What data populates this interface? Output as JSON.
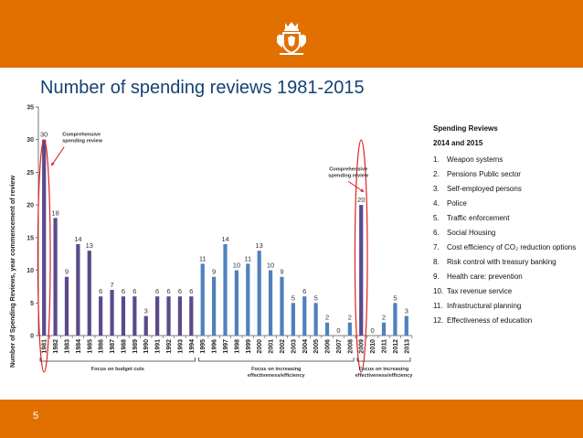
{
  "slide": {
    "title": "Number of spending reviews 1981-2015",
    "page_number": "5",
    "colors": {
      "brand_orange": "#e17000",
      "title_blue": "#154273",
      "bar_purple": "#5b4a8b",
      "bar_blue": "#4f81bd",
      "highlight_red": "#e02020"
    }
  },
  "legend": {
    "heading_1": "Spending Reviews",
    "heading_2": "2014 and 2015",
    "items": [
      {
        "num": "1.",
        "text": "Weapon systems"
      },
      {
        "num": "2.",
        "text": "Pensions Public sector"
      },
      {
        "num": "3.",
        "text": "Self-employed persons"
      },
      {
        "num": "4.",
        "text": "Police"
      },
      {
        "num": "5.",
        "text": "Traffic enforcement"
      },
      {
        "num": "6.",
        "text": "Social Housing"
      },
      {
        "num": "7.",
        "text": "Cost efficiency of CO₂ reduction options"
      },
      {
        "num": "8.",
        "text": "Risk control with treasury banking"
      },
      {
        "num": "9.",
        "text": "Health care: prevention"
      },
      {
        "num": "10.",
        "text": "Tax revenue service"
      },
      {
        "num": "11.",
        "text": "Infrastructural planning"
      },
      {
        "num": "12.",
        "text": "Effectiveness of education"
      }
    ]
  },
  "chart_data": {
    "type": "bar",
    "title": "",
    "ylabel": "Number of Spending Reviews, year commencement of review",
    "xlabel": "",
    "ylim": [
      0,
      35
    ],
    "yticks": [
      0,
      5,
      10,
      15,
      20,
      25,
      30,
      35
    ],
    "grid": false,
    "categories": [
      "1981",
      "1982",
      "1983",
      "1984",
      "1985",
      "1986",
      "1987",
      "1988",
      "1989",
      "1990",
      "1991",
      "1992",
      "1993",
      "1994",
      "1995",
      "1996",
      "1997",
      "1998",
      "1999",
      "2000",
      "2001",
      "2002",
      "2003",
      "2004",
      "2005",
      "2006",
      "2007",
      "2008",
      "2009",
      "2010",
      "2011",
      "2012",
      "2013"
    ],
    "values": [
      30,
      18,
      9,
      14,
      13,
      6,
      7,
      6,
      6,
      3,
      6,
      6,
      6,
      6,
      11,
      9,
      14,
      10,
      11,
      13,
      10,
      9,
      5,
      6,
      5,
      2,
      0,
      2,
      20,
      0,
      2,
      5,
      3
    ],
    "period_colors": [
      "purple",
      "purple",
      "purple",
      "purple",
      "purple",
      "purple",
      "purple",
      "purple",
      "purple",
      "purple",
      "purple",
      "purple",
      "purple",
      "purple",
      "blue",
      "blue",
      "blue",
      "blue",
      "blue",
      "blue",
      "blue",
      "blue",
      "blue",
      "blue",
      "blue",
      "blue",
      "blue",
      "blue",
      "purple",
      "blue",
      "blue",
      "blue",
      "blue"
    ],
    "annotations": [
      {
        "text_lines": [
          "Comprehensive",
          "spending review"
        ],
        "year": "1981"
      },
      {
        "text_lines": [
          "Comprehensive",
          "spending review"
        ],
        "year": "2009"
      }
    ],
    "periods": [
      {
        "text_lines": [
          "Focus on budget cuts"
        ],
        "from": "1981",
        "to": "1994"
      },
      {
        "text_lines": [
          "Focus on increasing",
          "effectiveness/efficiency"
        ],
        "from": "1995",
        "to": "2008"
      },
      {
        "text_lines": [
          "Focus on increasing",
          "effectiveness/efficiency"
        ],
        "from": "2009",
        "to": "2013"
      }
    ]
  }
}
